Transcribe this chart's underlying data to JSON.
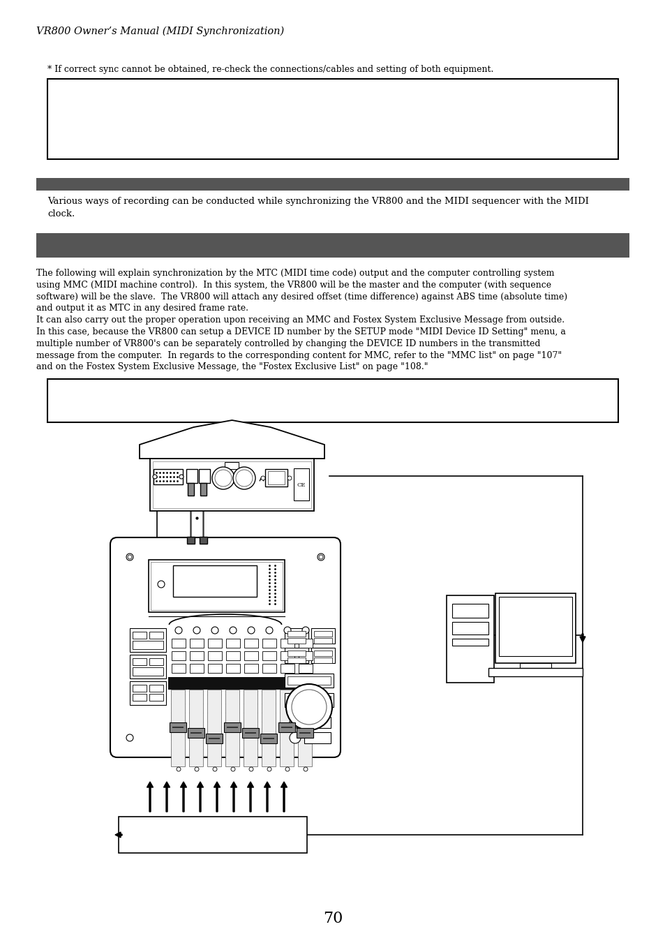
{
  "bg_color": "#ffffff",
  "page_number": "70",
  "header_italic": "VR800 Owner’s Manual (MIDI Synchronization)",
  "note_text": "* If correct sync cannot be obtained, re-check the connections/cables and setting of both equipment.",
  "section1_bar_color": "#555555",
  "section1_text_line1": "Various ways of recording can be conducted while synchronizing the VR800 and the MIDI sequencer with the MIDI",
  "section1_text_line2": "clock.",
  "section2_bar_color": "#555555",
  "body_lines": [
    "The following will explain synchronization by the MTC (MIDI time code) output and the computer controlling system",
    "using MMC (MIDI machine control).  In this system, the VR800 will be the master and the computer (with sequence",
    "software) will be the slave.  The VR800 will attach any desired offset (time difference) against ABS time (absolute time)",
    "and output it as MTC in any desired frame rate.",
    "It can also carry out the proper operation upon receiving an MMC and Fostex System Exclusive Message from outside.",
    "In this case, because the VR800 can setup a DEVICE ID number by the SETUP mode \"MIDI Device ID Setting\" menu, a",
    "multiple number of VR800's can be separately controlled by changing the DEVICE ID numbers in the transmitted",
    "message from the computer.  In regards to the corresponding content for MMC, refer to the \"MMC list\" on page \"107\"",
    "and on the Fostex System Exclusive Message, the \"Fostex Exclusive List\" on page \"108.\""
  ],
  "bar1_color": "#555555",
  "bar2_color": "#555555"
}
